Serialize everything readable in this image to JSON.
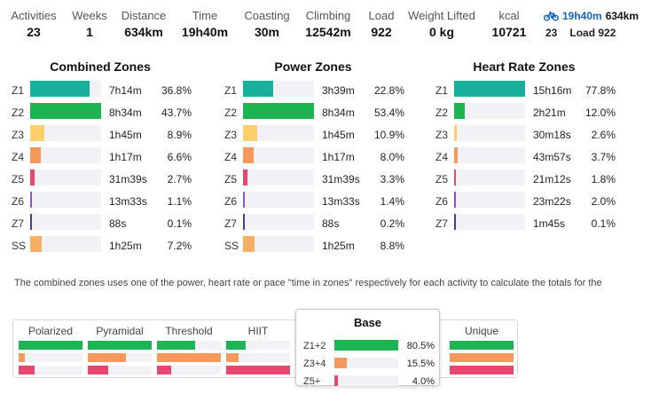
{
  "summary": {
    "stats": [
      {
        "label": "Activities",
        "value": "23"
      },
      {
        "label": "Weeks",
        "value": "1"
      },
      {
        "label": "Distance",
        "value": "634km"
      },
      {
        "label": "Time",
        "value": "19h40m"
      },
      {
        "label": "Coasting",
        "value": "30m"
      },
      {
        "label": "Climbing",
        "value": "12542m"
      },
      {
        "label": "Load",
        "value": "922"
      },
      {
        "label": "Weight Lifted",
        "value": "0 kg"
      },
      {
        "label": "kcal",
        "value": "10721"
      }
    ],
    "sport": {
      "icon": "bike-icon",
      "time": "19h40m",
      "distance": "634km",
      "activities": "23",
      "load": "Load 922"
    }
  },
  "colors": {
    "Z1": "#17b09c",
    "Z2": "#1db553",
    "Z3": "#fbd06b",
    "Z4": "#f59a5c",
    "Z5": "#e8476f",
    "Z6": "#8a55cc",
    "Z7": "#4a3d8f",
    "SS": "#f5b066",
    "track": "#f1f1f6",
    "link": "#1565c0"
  },
  "zone_tables": [
    {
      "title": "Combined Zones",
      "rows": [
        {
          "zone": "Z1",
          "time": "7h14m",
          "pct": "36.8%",
          "frac": 0.842
        },
        {
          "zone": "Z2",
          "time": "8h34m",
          "pct": "43.7%",
          "frac": 1.0
        },
        {
          "zone": "Z3",
          "time": "1h45m",
          "pct": "8.9%",
          "frac": 0.204
        },
        {
          "zone": "Z4",
          "time": "1h17m",
          "pct": "6.6%",
          "frac": 0.151
        },
        {
          "zone": "Z5",
          "time": "31m39s",
          "pct": "2.7%",
          "frac": 0.062
        },
        {
          "zone": "Z6",
          "time": "13m33s",
          "pct": "1.1%",
          "frac": 0.025
        },
        {
          "zone": "Z7",
          "time": "88s",
          "pct": "0.1%",
          "frac": 0.01
        },
        {
          "zone": "SS",
          "time": "1h25m",
          "pct": "7.2%",
          "frac": 0.165
        }
      ]
    },
    {
      "title": "Power Zones",
      "rows": [
        {
          "zone": "Z1",
          "time": "3h39m",
          "pct": "22.8%",
          "frac": 0.427
        },
        {
          "zone": "Z2",
          "time": "8h34m",
          "pct": "53.4%",
          "frac": 1.0
        },
        {
          "zone": "Z3",
          "time": "1h45m",
          "pct": "10.9%",
          "frac": 0.204
        },
        {
          "zone": "Z4",
          "time": "1h17m",
          "pct": "8.0%",
          "frac": 0.15
        },
        {
          "zone": "Z5",
          "time": "31m39s",
          "pct": "3.3%",
          "frac": 0.062
        },
        {
          "zone": "Z6",
          "time": "13m33s",
          "pct": "1.4%",
          "frac": 0.026
        },
        {
          "zone": "Z7",
          "time": "88s",
          "pct": "0.2%",
          "frac": 0.01
        },
        {
          "zone": "SS",
          "time": "1h25m",
          "pct": "8.8%",
          "frac": 0.165
        }
      ]
    },
    {
      "title": "Heart Rate Zones",
      "rows": [
        {
          "zone": "Z1",
          "time": "15h16m",
          "pct": "77.8%",
          "frac": 1.0
        },
        {
          "zone": "Z2",
          "time": "2h21m",
          "pct": "12.0%",
          "frac": 0.154
        },
        {
          "zone": "Z3",
          "time": "30m18s",
          "pct": "2.6%",
          "frac": 0.033
        },
        {
          "zone": "Z4",
          "time": "43m57s",
          "pct": "3.7%",
          "frac": 0.048
        },
        {
          "zone": "Z5",
          "time": "21m12s",
          "pct": "1.8%",
          "frac": 0.023
        },
        {
          "zone": "Z6",
          "time": "23m22s",
          "pct": "2.0%",
          "frac": 0.026
        },
        {
          "zone": "Z7",
          "time": "1m45s",
          "pct": "0.1%",
          "frac": 0.01
        }
      ]
    }
  ],
  "note": "The combined zones uses one of the power, heart rate or pace \"time in zones\" respectively for each activity to calculate the totals for the",
  "models": [
    {
      "name": "Polarized",
      "fracs": [
        1.0,
        0.1,
        0.25
      ]
    },
    {
      "name": "Pyramidal",
      "fracs": [
        1.0,
        0.6,
        0.32
      ]
    },
    {
      "name": "Threshold",
      "fracs": [
        0.6,
        1.0,
        0.22
      ]
    },
    {
      "name": "HIIT",
      "fracs": [
        0.3,
        0.2,
        1.0
      ]
    },
    {
      "name": "Unique",
      "fracs": [
        1.0,
        1.0,
        1.0
      ]
    }
  ],
  "base": {
    "title": "Base",
    "rows": [
      {
        "label": "Z1+2",
        "pct": "80.5%",
        "frac": 1.0
      },
      {
        "label": "Z3+4",
        "pct": "15.5%",
        "frac": 0.19
      },
      {
        "label": "Z5+",
        "pct": "4.0%",
        "frac": 0.05
      }
    ]
  }
}
